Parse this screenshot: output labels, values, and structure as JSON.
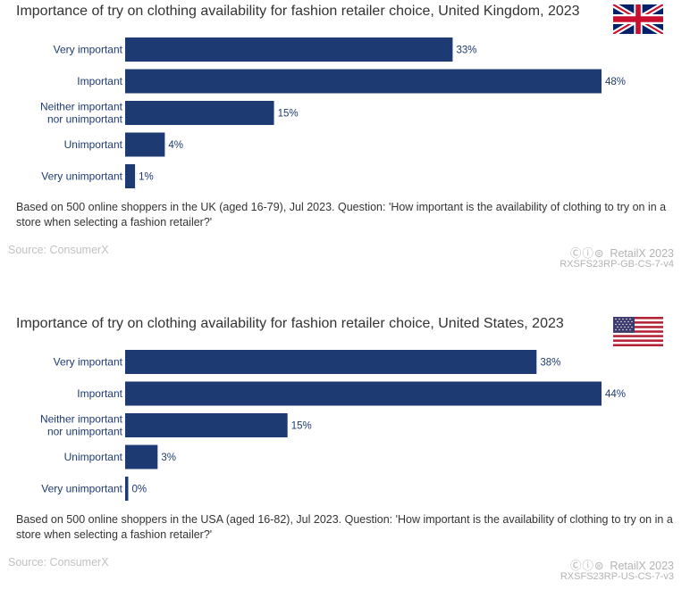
{
  "chart_data": [
    {
      "type": "bar",
      "orientation": "horizontal",
      "title": "Importance of try on clothing availability for fashion retailer choice, United Kingdom, 2023",
      "categories": [
        "Very important",
        "Important",
        "Neither important nor unimportant",
        "Unimportant",
        "Very unimportant"
      ],
      "values": [
        33,
        48,
        15,
        4,
        1
      ],
      "value_suffix": "%",
      "xlim": [
        0,
        48
      ],
      "bar_color": "#1e3a72",
      "note": "Based on 500 online shoppers in the UK (aged 16-79), Jul 2023. Question: 'How important is the availability of clothing to try on in a store when selecting a fashion retailer?'",
      "source": "Source: ConsumerX",
      "brand": "RetailX 2023",
      "license_icons": "cc-by-nd",
      "code": "RXSFS23RP-GB-CS-7-v4",
      "flag": "uk-flag-icon"
    },
    {
      "type": "bar",
      "orientation": "horizontal",
      "title": "Importance of try on clothing availability for fashion retailer choice, United States, 2023",
      "categories": [
        "Very important",
        "Important",
        "Neither important nor unimportant",
        "Unimportant",
        "Very unimportant"
      ],
      "values": [
        38,
        44,
        15,
        3,
        0
      ],
      "value_suffix": "%",
      "xlim": [
        0,
        44
      ],
      "bar_color": "#1e3a72",
      "note": "Based on 500 online shoppers in the USA (aged 16-82), Jul 2023. Question: 'How important is the availability of clothing to try on in a store when selecting a fashion retailer?'",
      "source": "Source: ConsumerX",
      "brand": "RetailX 2023",
      "license_icons": "cc-by-nd",
      "code": "RXSFS23RP-US-CS-7-v3",
      "flag": "us-flag-icon"
    }
  ]
}
